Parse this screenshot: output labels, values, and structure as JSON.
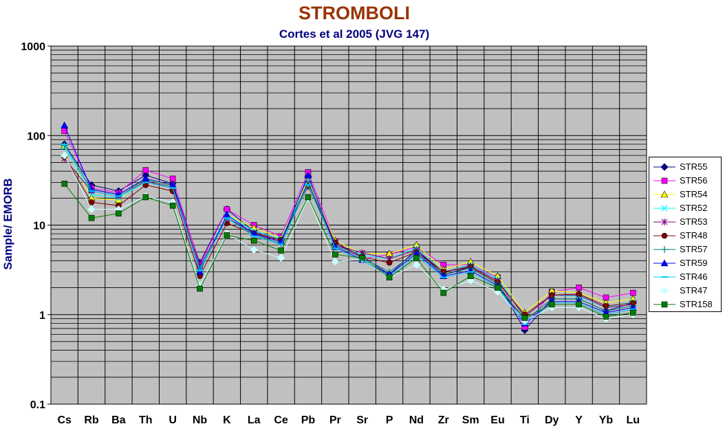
{
  "chart_data": {
    "type": "line",
    "title": "STROMBOLI",
    "subtitle": "Cortes et al 2005 (JVG 147)",
    "xlabel": "",
    "ylabel": "Sample/ EMORB",
    "yscale": "log",
    "ylim": [
      0.1,
      1000
    ],
    "yticks": [
      "0.1",
      "1",
      "10",
      "100",
      "1000"
    ],
    "grid": true,
    "legend_position": "right",
    "categories": [
      "Cs",
      "Rb",
      "Ba",
      "Th",
      "U",
      "Nb",
      "K",
      "La",
      "Ce",
      "Pb",
      "Pr",
      "Sr",
      "P",
      "Nd",
      "Zr",
      "Sm",
      "Eu",
      "Ti",
      "Dy",
      "Y",
      "Yb",
      "Lu"
    ],
    "series": [
      {
        "name": "STR55",
        "color": "#000080",
        "marker": "diamond",
        "values": [
          80,
          28,
          24,
          36,
          29,
          3.8,
          15,
          8.5,
          7,
          35,
          6.1,
          4.5,
          2.8,
          5.3,
          2.8,
          3.4,
          2.3,
          0.67,
          1.5,
          1.5,
          1.1,
          1.35
        ]
      },
      {
        "name": "STR56",
        "color": "#ff00ff",
        "marker": "square",
        "values": [
          113,
          26,
          23,
          41,
          33,
          3.6,
          15,
          10,
          7.5,
          39,
          6.6,
          4.2,
          4.7,
          5.7,
          3.6,
          3.6,
          2.6,
          0.72,
          1.8,
          2.0,
          1.55,
          1.75
        ]
      },
      {
        "name": "STR54",
        "color": "#ffff00",
        "marker": "triangle",
        "values": [
          77,
          20,
          19,
          33,
          27,
          3.0,
          13,
          9.3,
          7.2,
          32,
          6.7,
          4.8,
          4.8,
          6.0,
          3.2,
          3.9,
          2.7,
          1.05,
          1.85,
          1.75,
          1.35,
          1.5
        ]
      },
      {
        "name": "STR52",
        "color": "#00ffff",
        "marker": "x",
        "values": [
          75,
          22,
          20,
          30,
          26,
          3.3,
          13,
          8.6,
          7.0,
          30,
          6.2,
          4.6,
          4.2,
          5.6,
          3.0,
          3.6,
          2.5,
          0.95,
          1.65,
          1.6,
          1.2,
          1.4
        ]
      },
      {
        "name": "STR53",
        "color": "#800080",
        "marker": "star",
        "values": [
          55,
          24,
          21,
          31,
          26,
          3.5,
          12,
          8.2,
          6.8,
          29,
          6.0,
          4.9,
          4.2,
          5.3,
          3.0,
          3.5,
          2.4,
          0.95,
          1.65,
          1.65,
          1.2,
          1.3
        ]
      },
      {
        "name": "STR48",
        "color": "#800000",
        "marker": "circle",
        "values": [
          58,
          18,
          16.5,
          28,
          24,
          2.7,
          10.5,
          8.0,
          6.8,
          27,
          6.4,
          4.4,
          3.8,
          5.0,
          3.0,
          3.4,
          2.3,
          1.0,
          1.65,
          1.7,
          1.25,
          1.35
        ]
      },
      {
        "name": "STR57",
        "color": "#008080",
        "marker": "plus",
        "values": [
          78,
          25,
          22,
          32,
          27,
          3.2,
          12,
          7.8,
          6.2,
          31,
          5.9,
          4.3,
          3.0,
          5.0,
          2.8,
          3.3,
          2.2,
          0.85,
          1.5,
          1.5,
          1.1,
          1.25
        ]
      },
      {
        "name": "STR59",
        "color": "#0000ff",
        "marker": "triangle",
        "values": [
          130,
          25,
          22,
          33,
          28,
          3.0,
          13,
          8.0,
          6.5,
          36,
          5.7,
          4.1,
          2.8,
          4.8,
          2.7,
          3.1,
          2.1,
          0.8,
          1.4,
          1.4,
          1.05,
          1.2
        ]
      },
      {
        "name": "STR46",
        "color": "#00ccff",
        "marker": "dash",
        "values": [
          80,
          24,
          21,
          30,
          26,
          3.1,
          12,
          7.5,
          6.1,
          28,
          5.5,
          4.0,
          2.7,
          4.5,
          2.6,
          3.0,
          2.0,
          0.78,
          1.35,
          1.35,
          1.0,
          1.15
        ]
      },
      {
        "name": "STR47",
        "color": "#ccffff",
        "marker": "diamond",
        "values": [
          60,
          15,
          15,
          21,
          18,
          2.1,
          8.0,
          5.3,
          4.3,
          20,
          3.9,
          4.2,
          2.6,
          3.6,
          1.9,
          2.4,
          1.8,
          0.85,
          1.2,
          1.2,
          0.9,
          1.0
        ]
      },
      {
        "name": "STR158",
        "color": "#008000",
        "marker": "square",
        "values": [
          29,
          12,
          13.5,
          20.5,
          16.5,
          1.95,
          7.7,
          6.7,
          5.2,
          20.5,
          4.7,
          4.3,
          2.6,
          4.3,
          1.75,
          2.7,
          2.0,
          0.92,
          1.3,
          1.3,
          0.95,
          1.05
        ]
      }
    ]
  }
}
